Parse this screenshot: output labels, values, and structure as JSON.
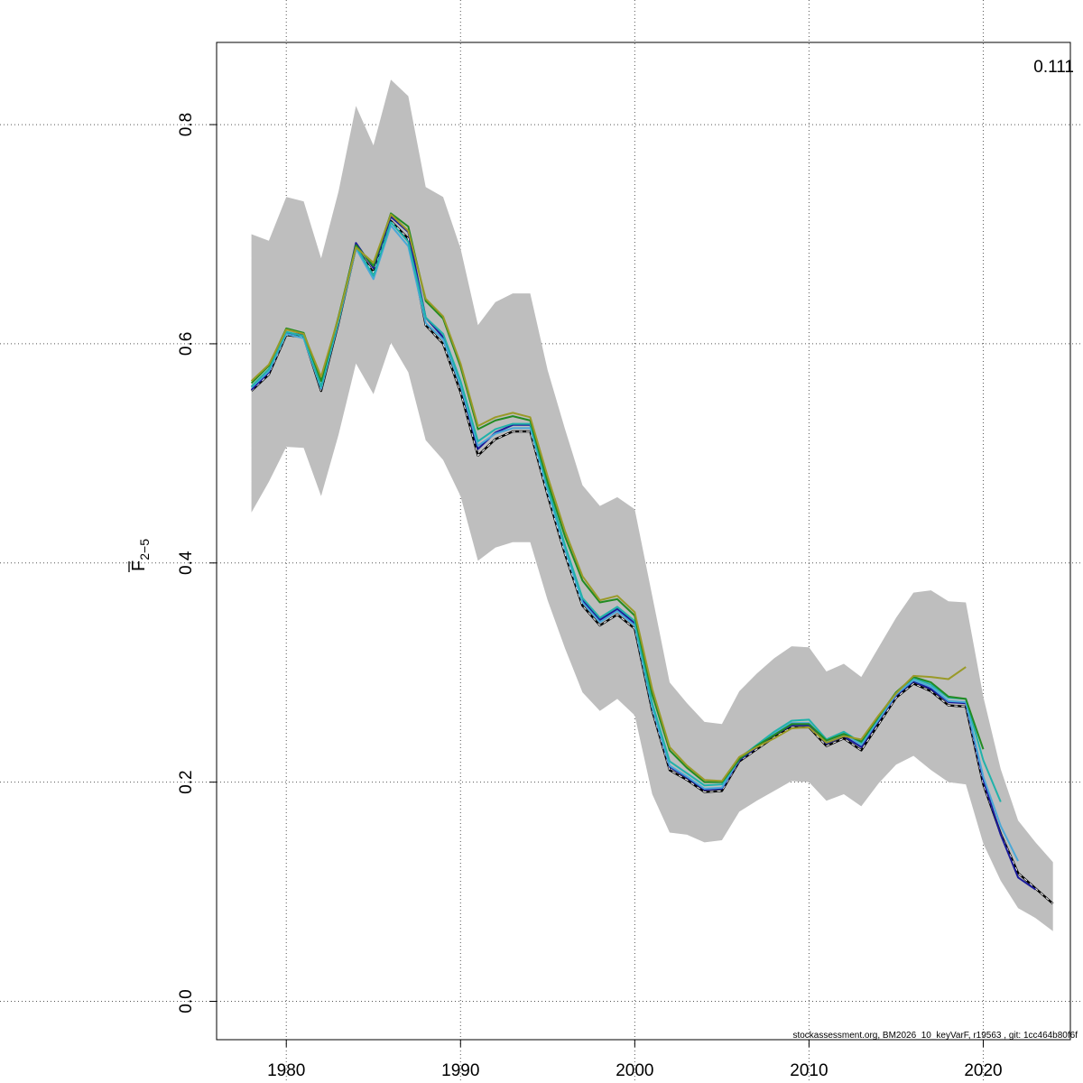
{
  "chart_data": {
    "type": "line",
    "ylabel_base": "F",
    "ylabel_sub": "2−5",
    "corner_label": "0.111",
    "footer": "stockassessment.org, BM2026_10_keyVarF, r19563 , git: 1cc464b80f6f",
    "xlim": [
      1976,
      2025
    ],
    "ylim": [
      -0.035,
      0.875
    ],
    "x_ticks": [
      1980,
      1990,
      2000,
      2010,
      2020
    ],
    "x_tick_labels": [
      "1980",
      "1990",
      "2000",
      "2010",
      "2020"
    ],
    "y_ticks": [
      0.0,
      0.2,
      0.4,
      0.6,
      0.8
    ],
    "y_tick_labels": [
      "0.0",
      "0.2",
      "0.4",
      "0.6",
      "0.8"
    ],
    "grid": true,
    "band": {
      "color": "#bebebe",
      "x": [
        1978,
        1979,
        1980,
        1981,
        1982,
        1983,
        1984,
        1985,
        1986,
        1987,
        1988,
        1989,
        1990,
        1991,
        1992,
        1993,
        1994,
        1995,
        1996,
        1997,
        1998,
        1999,
        2000,
        2001,
        2002,
        2003,
        2004,
        2005,
        2006,
        2007,
        2008,
        2009,
        2010,
        2011,
        2012,
        2013,
        2014,
        2015,
        2016,
        2017,
        2018,
        2019,
        2020,
        2021,
        2022,
        2023,
        2024
      ],
      "lower": [
        0.446,
        0.474,
        0.506,
        0.505,
        0.461,
        0.517,
        0.582,
        0.554,
        0.601,
        0.574,
        0.512,
        0.494,
        0.461,
        0.402,
        0.414,
        0.419,
        0.419,
        0.366,
        0.322,
        0.282,
        0.265,
        0.276,
        0.261,
        0.189,
        0.154,
        0.152,
        0.145,
        0.147,
        0.173,
        0.183,
        0.192,
        0.201,
        0.2,
        0.183,
        0.189,
        0.178,
        0.199,
        0.216,
        0.224,
        0.211,
        0.2,
        0.198,
        0.144,
        0.11,
        0.085,
        0.076,
        0.064
      ],
      "upper": [
        0.7,
        0.694,
        0.734,
        0.73,
        0.678,
        0.739,
        0.817,
        0.781,
        0.841,
        0.826,
        0.743,
        0.734,
        0.687,
        0.617,
        0.638,
        0.646,
        0.646,
        0.576,
        0.522,
        0.471,
        0.452,
        0.46,
        0.449,
        0.37,
        0.291,
        0.272,
        0.255,
        0.253,
        0.283,
        0.299,
        0.313,
        0.324,
        0.323,
        0.301,
        0.308,
        0.296,
        0.323,
        0.35,
        0.373,
        0.375,
        0.365,
        0.364,
        0.278,
        0.212,
        0.165,
        0.145,
        0.127
      ]
    },
    "series": [
      {
        "color": "#000000",
        "dash": true,
        "x": [
          1978,
          1979,
          1980,
          1981,
          1982,
          1983,
          1984,
          1985,
          1986,
          1987,
          1988,
          1989,
          1990,
          1991,
          1992,
          1993,
          1994,
          1995,
          1996,
          1997,
          1998,
          1999,
          2000,
          2001,
          2002,
          2003,
          2004,
          2005,
          2006,
          2007,
          2008,
          2009,
          2010,
          2011,
          2012,
          2013,
          2014,
          2015,
          2016,
          2017,
          2018,
          2019,
          2020,
          2021,
          2022,
          2023,
          2024
        ],
        "values": [
          0.557,
          0.572,
          0.608,
          0.606,
          0.557,
          0.619,
          0.688,
          0.665,
          0.712,
          0.696,
          0.617,
          0.6,
          0.556,
          0.498,
          0.513,
          0.52,
          0.52,
          0.462,
          0.408,
          0.361,
          0.343,
          0.353,
          0.34,
          0.265,
          0.211,
          0.202,
          0.191,
          0.192,
          0.219,
          0.23,
          0.241,
          0.25,
          0.25,
          0.233,
          0.24,
          0.229,
          0.253,
          0.277,
          0.29,
          0.283,
          0.27,
          0.269,
          0.198,
          0.153,
          0.117,
          0.103,
          0.089
        ]
      },
      {
        "color": "#1a1a9a",
        "dash": false,
        "x": [
          1978,
          1979,
          1980,
          1981,
          1982,
          1983,
          1984,
          1985,
          1986,
          1987,
          1988,
          1989,
          1990,
          1991,
          1992,
          1993,
          1994,
          1995,
          1996,
          1997,
          1998,
          1999,
          2000,
          2001,
          2002,
          2003,
          2004,
          2005,
          2006,
          2007,
          2008,
          2009,
          2010,
          2011,
          2012,
          2013,
          2014,
          2015,
          2016,
          2017,
          2018,
          2019,
          2020,
          2021,
          2022,
          2023
        ],
        "values": [
          0.558,
          0.574,
          0.61,
          0.608,
          0.559,
          0.621,
          0.692,
          0.669,
          0.716,
          0.702,
          0.624,
          0.606,
          0.562,
          0.504,
          0.519,
          0.526,
          0.526,
          0.468,
          0.413,
          0.366,
          0.348,
          0.358,
          0.345,
          0.268,
          0.214,
          0.204,
          0.193,
          0.194,
          0.22,
          0.232,
          0.243,
          0.252,
          0.252,
          0.235,
          0.242,
          0.232,
          0.256,
          0.279,
          0.292,
          0.285,
          0.273,
          0.272,
          0.202,
          0.152,
          0.113,
          0.102
        ]
      },
      {
        "color": "#4aa8d8",
        "dash": false,
        "x": [
          1978,
          1979,
          1980,
          1981,
          1982,
          1983,
          1984,
          1985,
          1986,
          1987,
          1988,
          1989,
          1990,
          1991,
          1992,
          1993,
          1994,
          1995,
          1996,
          1997,
          1998,
          1999,
          2000,
          2001,
          2002,
          2003,
          2004,
          2005,
          2006,
          2007,
          2008,
          2009,
          2010,
          2011,
          2012,
          2013,
          2014,
          2015,
          2016,
          2017,
          2018,
          2019,
          2020,
          2021,
          2022
        ],
        "values": [
          0.56,
          0.575,
          0.609,
          0.605,
          0.559,
          0.62,
          0.687,
          0.659,
          0.708,
          0.689,
          0.619,
          0.604,
          0.562,
          0.507,
          0.518,
          0.523,
          0.523,
          0.466,
          0.412,
          0.364,
          0.346,
          0.356,
          0.343,
          0.268,
          0.215,
          0.205,
          0.194,
          0.195,
          0.221,
          0.233,
          0.244,
          0.254,
          0.254,
          0.237,
          0.244,
          0.234,
          0.257,
          0.28,
          0.293,
          0.287,
          0.274,
          0.273,
          0.205,
          0.16,
          0.128
        ]
      },
      {
        "color": "#20b2aa",
        "dash": false,
        "x": [
          1978,
          1979,
          1980,
          1981,
          1982,
          1983,
          1984,
          1985,
          1986,
          1987,
          1988,
          1989,
          1990,
          1991,
          1992,
          1993,
          1994,
          1995,
          1996,
          1997,
          1998,
          1999,
          2000,
          2001,
          2002,
          2003,
          2004,
          2005,
          2006,
          2007,
          2008,
          2009,
          2010,
          2011,
          2012,
          2013,
          2014,
          2015,
          2016,
          2017,
          2018,
          2019,
          2020,
          2021
        ],
        "values": [
          0.561,
          0.577,
          0.611,
          0.607,
          0.561,
          0.622,
          0.689,
          0.662,
          0.711,
          0.693,
          0.624,
          0.609,
          0.566,
          0.511,
          0.522,
          0.527,
          0.527,
          0.47,
          0.416,
          0.368,
          0.35,
          0.36,
          0.347,
          0.272,
          0.219,
          0.208,
          0.197,
          0.198,
          0.222,
          0.234,
          0.246,
          0.256,
          0.257,
          0.239,
          0.246,
          0.236,
          0.259,
          0.282,
          0.295,
          0.289,
          0.277,
          0.276,
          0.22,
          0.182
        ]
      },
      {
        "color": "#228b22",
        "dash": false,
        "x": [
          1978,
          1979,
          1980,
          1981,
          1982,
          1983,
          1984,
          1985,
          1986,
          1987,
          1988,
          1989,
          1990,
          1991,
          1992,
          1993,
          1994,
          1995,
          1996,
          1997,
          1998,
          1999,
          2000,
          2001,
          2002,
          2003,
          2004,
          2005,
          2006,
          2007,
          2008,
          2009,
          2010,
          2011,
          2012,
          2013,
          2014,
          2015,
          2016,
          2017,
          2018,
          2019,
          2020
        ],
        "values": [
          0.564,
          0.58,
          0.614,
          0.61,
          0.566,
          0.625,
          0.69,
          0.671,
          0.719,
          0.707,
          0.639,
          0.623,
          0.579,
          0.522,
          0.53,
          0.534,
          0.53,
          0.474,
          0.424,
          0.384,
          0.364,
          0.367,
          0.352,
          0.28,
          0.229,
          0.213,
          0.2,
          0.2,
          0.221,
          0.233,
          0.243,
          0.253,
          0.253,
          0.238,
          0.244,
          0.237,
          0.26,
          0.282,
          0.296,
          0.291,
          0.278,
          0.276,
          0.23
        ]
      },
      {
        "color": "#9a9a28",
        "dash": false,
        "x": [
          1978,
          1979,
          1980,
          1981,
          1982,
          1983,
          1984,
          1985,
          1986,
          1987,
          1988,
          1989,
          1990,
          1991,
          1992,
          1993,
          1994,
          1995,
          1996,
          1997,
          1998,
          1999,
          2000,
          2001,
          2002,
          2003,
          2004,
          2005,
          2006,
          2007,
          2008,
          2009,
          2010,
          2011,
          2012,
          2013,
          2014,
          2015,
          2016,
          2017,
          2018,
          2019
        ],
        "values": [
          0.566,
          0.581,
          0.613,
          0.609,
          0.57,
          0.624,
          0.688,
          0.674,
          0.718,
          0.703,
          0.641,
          0.625,
          0.582,
          0.525,
          0.533,
          0.537,
          0.533,
          0.479,
          0.429,
          0.388,
          0.366,
          0.37,
          0.355,
          0.285,
          0.232,
          0.215,
          0.202,
          0.201,
          0.223,
          0.232,
          0.24,
          0.249,
          0.25,
          0.236,
          0.242,
          0.239,
          0.261,
          0.281,
          0.297,
          0.296,
          0.294,
          0.305
        ]
      }
    ]
  }
}
